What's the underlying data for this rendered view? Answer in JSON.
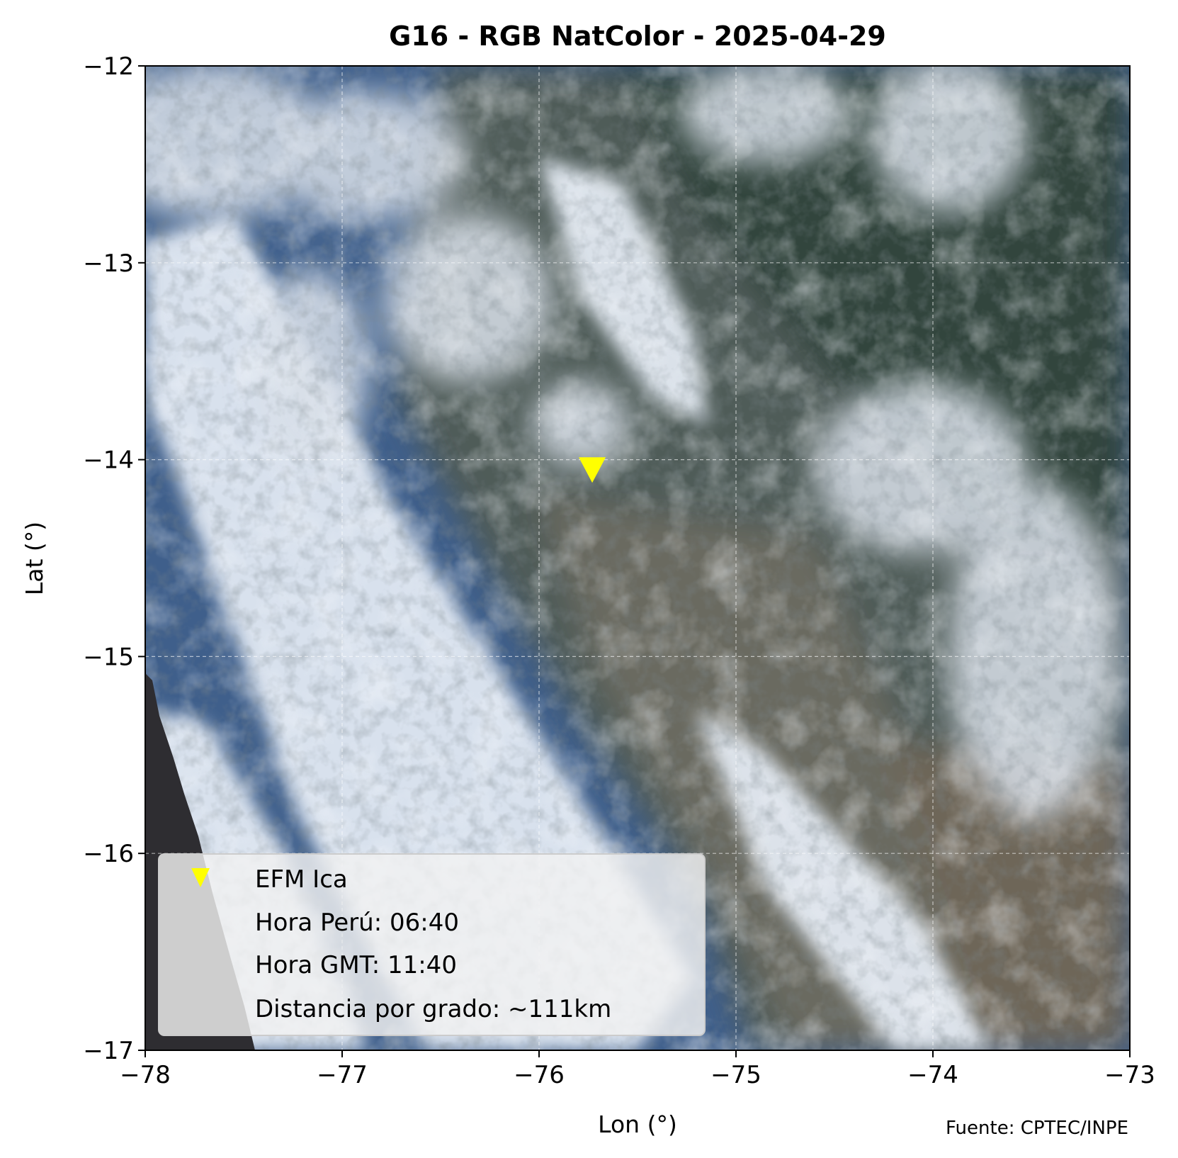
{
  "figure": {
    "title": "G16 - RGB NatColor - 2025-04-29",
    "xlabel": "Lon (°)",
    "ylabel": "Lat (°)",
    "source": "Fuente: CPTEC/INPE"
  },
  "chart_data": {
    "type": "scatter",
    "title": "G16 - RGB NatColor - 2025-04-29",
    "xlabel": "Lon (°)",
    "ylabel": "Lat (°)",
    "xlim": [
      -78,
      -73
    ],
    "ylim": [
      -17,
      -12
    ],
    "xticks": [
      -78,
      -77,
      -76,
      -75,
      -74,
      -73
    ],
    "yticks": [
      -12,
      -13,
      -14,
      -15,
      -16,
      -17
    ],
    "xtick_labels": [
      "−78",
      "−77",
      "−76",
      "−75",
      "−74",
      "−73"
    ],
    "ytick_labels": [
      "−12",
      "−13",
      "−14",
      "−15",
      "−16",
      "−17"
    ],
    "grid": true,
    "grid_style": "dashed",
    "background": "satellite RGB NatColor imagery",
    "series": [
      {
        "name": "EFM Ica",
        "marker": "triangle-down",
        "color": "#ffff00",
        "points": [
          {
            "x": -75.73,
            "y": -14.06
          }
        ]
      }
    ],
    "legend": {
      "placement": "lower-left",
      "entries": [
        "EFM Ica",
        "Hora Perú: 06:40",
        "Hora GMT: 11:40",
        "Distancia por grado: ~111km"
      ]
    },
    "colors": {
      "marker": "#ffff00",
      "ocean": "#3d5f8c",
      "cloud": "#e8eef6",
      "land": "#556059",
      "nodata": "#2e2d31"
    }
  }
}
